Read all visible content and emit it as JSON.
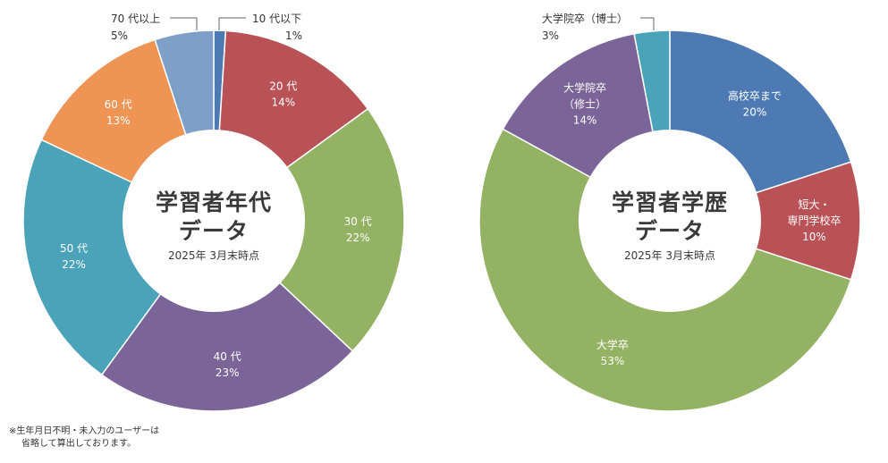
{
  "chart_data": [
    {
      "type": "pie",
      "title_lines": [
        "学習者年代",
        "データ"
      ],
      "subtitle": "2025年 3月末時点",
      "slices": [
        {
          "name": "10 代以下",
          "value": 1,
          "pct_label": "1%",
          "color": "#4e7ab4",
          "label_mode": "external"
        },
        {
          "name": "20 代",
          "value": 14,
          "pct_label": "14%",
          "color": "#b85256",
          "label_mode": "inside"
        },
        {
          "name": "30 代",
          "value": 22,
          "pct_label": "22%",
          "color": "#94b263",
          "label_mode": "inside"
        },
        {
          "name": "40 代",
          "value": 23,
          "pct_label": "23%",
          "color": "#7b6598",
          "label_mode": "inside"
        },
        {
          "name": "50 代",
          "value": 22,
          "pct_label": "22%",
          "color": "#4aa3b8",
          "label_mode": "inside"
        },
        {
          "name": "60 代",
          "value": 13,
          "pct_label": "13%",
          "color": "#ee9455",
          "label_mode": "inside"
        },
        {
          "name": "70 代以上",
          "value": 5,
          "pct_label": "5%",
          "color": "#7ea0c8",
          "label_mode": "external"
        }
      ]
    },
    {
      "type": "pie",
      "title_lines": [
        "学習者学歴",
        "データ"
      ],
      "subtitle": "2025年 3月末時点",
      "slices": [
        {
          "name": "高校卒まで",
          "value": 20,
          "pct_label": "20%",
          "color": "#4e7ab4",
          "label_mode": "inside"
        },
        {
          "name": "短大・|専門学校卒",
          "value": 10,
          "pct_label": "10%",
          "color": "#b85256",
          "label_mode": "inside"
        },
        {
          "name": "大学卒",
          "value": 53,
          "pct_label": "53%",
          "color": "#94b263",
          "label_mode": "inside"
        },
        {
          "name": "大学院卒|（修士）",
          "value": 14,
          "pct_label": "14%",
          "color": "#7b6598",
          "label_mode": "inside"
        },
        {
          "name": "大学院卒（博士）",
          "value": 3,
          "pct_label": "3%",
          "color": "#4aa3b8",
          "label_mode": "external"
        }
      ]
    }
  ],
  "footnote": {
    "line1": "※生年月日不明・未入力のユーザーは",
    "line2": "省略して算出しております。"
  }
}
